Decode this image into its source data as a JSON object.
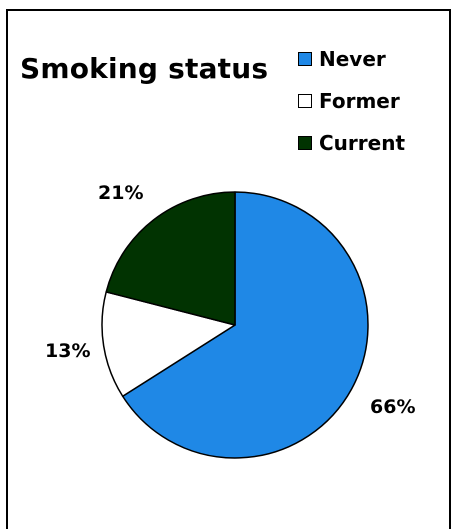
{
  "chart_data": {
    "type": "pie",
    "title": "Smoking status",
    "categories": [
      "Never",
      "Former",
      "Current"
    ],
    "values": [
      66,
      13,
      21
    ],
    "value_labels": [
      "66%",
      "13%",
      "21%"
    ],
    "colors": [
      "#1f88e6",
      "#ffffff",
      "#013301"
    ],
    "legend_position": "top-right"
  }
}
